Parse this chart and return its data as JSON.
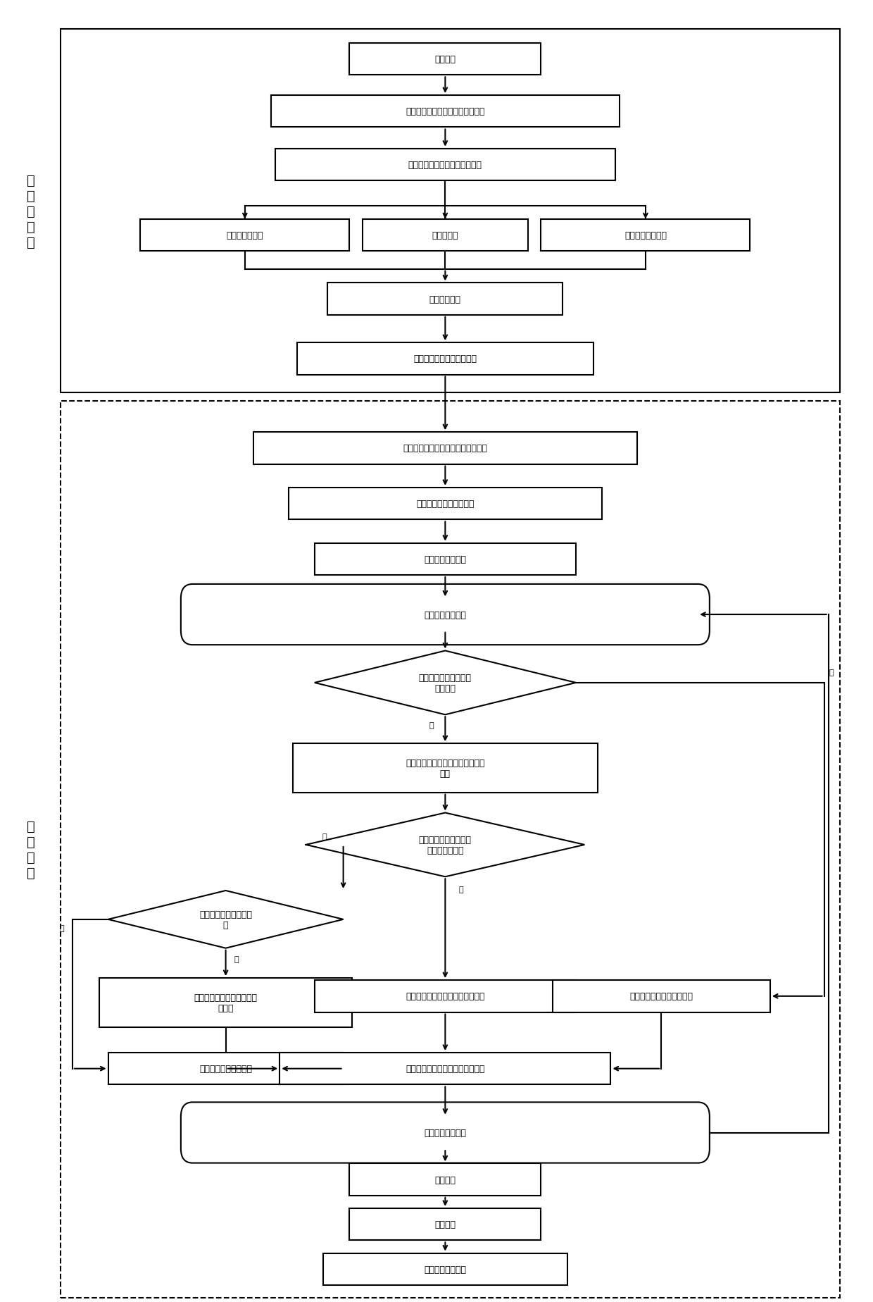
{
  "fig_width": 12.4,
  "fig_height": 18.49,
  "bg_color": "#ffffff",
  "font_size": 9,
  "section1_label": "大\n数\n据\n平\n台",
  "section2_label": "优\n化\n系\n统",
  "texts": {
    "start": "计划初始",
    "n1": "历史订单导入，订单业务数据分析",
    "n2": "节假日、季节更替入库订单预测",
    "n3l": "货物属性数据化",
    "n3m": "经验数字化",
    "n3r": "历史入库数据分析",
    "n4": "空间面积分配",
    "n5": "规划货架停放位置，并编号",
    "n6": "记录货架的存货情况和在库货物信息",
    "n7": "计算历史订单的特征向量",
    "n8": "算法进行优化分组",
    "loop1": "循环处理每组货物",
    "d1": "当前组的货物是否存在\n在库货物",
    "n9": "将所有在库货物的库位至于一个货\n架上",
    "d2": "当前组是否仍有未分配\n空间的货物种类",
    "d3": "当前货架是否有剩余库\n位",
    "n10": "选择当前货架的空余库位进\n行分配",
    "n11": "标记剩余空间，至于可用空间集合",
    "n12": "优化选择货架库位进行分配",
    "n13": "相邻货架选择空余库位",
    "n14": "处理完成当前货物，库位信息更新",
    "loop2": "循环处理每组货物",
    "n15": "手动调整",
    "n16": "多项会计",
    "n17": "库位分派结果导出"
  }
}
